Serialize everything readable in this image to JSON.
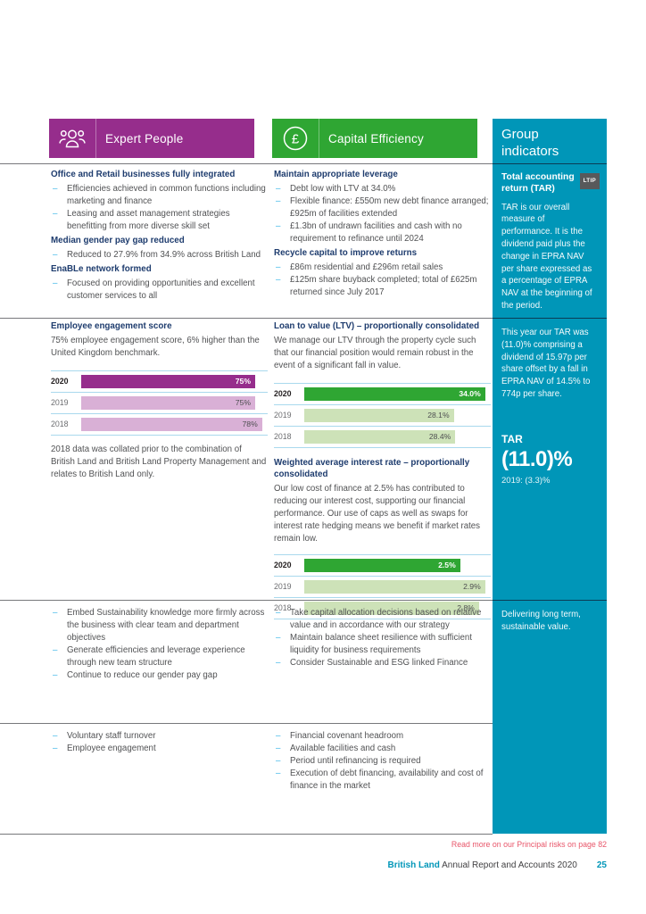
{
  "colors": {
    "purple": "#962d8c",
    "purple_light": "#d9b0d6",
    "green": "#2fa633",
    "green_light": "#cde2b8",
    "teal_sidebar": "#0096b8",
    "navy_heading": "#1e3c6e",
    "body_gray": "#515254",
    "dash_cyan": "#3db7e8",
    "row_line_blue": "#a9d9ed",
    "readmore_pink": "#e8566a"
  },
  "headers": {
    "expert_people": "Expert People",
    "capital_efficiency": "Capital Efficiency"
  },
  "sidebar": {
    "title": "Group indicators",
    "kpi_heading": "Total accounting return (TAR)",
    "kpi_badge": "LTIP",
    "kpi_desc": "TAR is our overall measure of performance. It is the dividend paid plus the change in EPRA NAV per share expressed as a percentage of EPRA NAV at the beginning of the period.",
    "year_summary": "This year our TAR was (11.0)% comprising a dividend of 15.97p per share offset by a fall in EPRA NAV of 14.5% to 774p per share.",
    "kpi_label": "TAR",
    "kpi_value": "(11.0)%",
    "kpi_prior": "2019: (3.3)%",
    "tagline": "Delivering long term, sustainable value."
  },
  "col1": {
    "section1": {
      "h1": "Office and Retail businesses fully integrated",
      "b1": [
        "Efficiencies achieved in common functions including marketing and finance",
        "Leasing and asset management strategies benefitting from more diverse skill set"
      ],
      "h2": "Median gender pay gap reduced",
      "b2": [
        "Reduced to 27.9% from 34.9% across British Land"
      ],
      "h3": "EnaBLe network formed",
      "b3": [
        "Focused on providing opportunities and excellent customer services to all"
      ]
    },
    "section2": {
      "heading": "Employee engagement score",
      "body": "75% employee engagement score, 6% higher than the United Kingdom benchmark.",
      "note": "2018 data was collated prior to the combination of British Land and British Land Property Management and relates to British Land only."
    },
    "section3": {
      "bullets": [
        "Embed Sustainability knowledge more firmly across the business with clear team and department objectives",
        "Generate efficiencies and leverage experience through new team structure",
        "Continue to reduce our gender pay gap"
      ]
    },
    "section4": {
      "bullets": [
        "Voluntary staff turnover",
        "Employee engagement"
      ]
    }
  },
  "col2": {
    "section1": {
      "h1": "Maintain appropriate leverage",
      "b1": [
        "Debt low with LTV at 34.0%",
        "Flexible finance: £550m new debt finance arranged; £925m of facilities extended",
        "£1.3bn of undrawn facilities and cash with no requirement to refinance until 2024"
      ],
      "h2": "Recycle capital to improve returns",
      "b2": [
        "£86m residential and £296m retail sales",
        "£125m share buyback completed; total of £625m returned since July 2017"
      ]
    },
    "section2": {
      "heading1": "Loan to value (LTV) – proportionally consolidated",
      "body1": "We manage our LTV through the property cycle such that our financial position would remain robust in the event of a significant fall in value.",
      "heading2": "Weighted average interest rate – proportionally consolidated",
      "body2": "Our low cost of finance at 2.5% has contributed to reducing our interest cost, supporting our financial performance. Our use of caps as well as swaps for interest rate hedging means we benefit if market rates remain low."
    },
    "section3": {
      "bullets": [
        "Take capital allocation decisions based on relative value and in accordance with our strategy",
        "Maintain balance sheet resilience with sufficient liquidity for business requirements",
        "Consider Sustainable and ESG linked Finance"
      ]
    },
    "section4": {
      "bullets": [
        "Financial covenant headroom",
        "Available facilities and cash",
        "Period until refinancing is required",
        "Execution of debt financing, availability and cost of finance in the market"
      ]
    }
  },
  "chart_data": [
    {
      "type": "bar",
      "title": "Employee engagement score",
      "orientation": "horizontal",
      "categories": [
        "2020",
        "2019",
        "2018"
      ],
      "values": [
        75,
        75,
        78
      ],
      "labels": [
        "75%",
        "75%",
        "78%"
      ],
      "unit": "%",
      "max": 78,
      "emphasis_color": "#962d8c",
      "bar_color": "#d9b0d6"
    },
    {
      "type": "bar",
      "title": "Loan to value (LTV) – proportionally consolidated",
      "orientation": "horizontal",
      "categories": [
        "2020",
        "2019",
        "2018"
      ],
      "values": [
        34.0,
        28.1,
        28.4
      ],
      "labels": [
        "34.0%",
        "28.1%",
        "28.4%"
      ],
      "unit": "%",
      "max": 34.0,
      "emphasis_color": "#2fa633",
      "bar_color": "#cde2b8"
    },
    {
      "type": "bar",
      "title": "Weighted average interest rate – proportionally consolidated",
      "orientation": "horizontal",
      "categories": [
        "2020",
        "2019",
        "2018"
      ],
      "values": [
        2.5,
        2.9,
        2.8
      ],
      "labels": [
        "2.5%",
        "2.9%",
        "2.8%"
      ],
      "unit": "%",
      "max": 2.9,
      "emphasis_color": "#2fa633",
      "bar_color": "#cde2b8"
    }
  ],
  "footer": {
    "read_more": "Read more on our Principal risks on page 82",
    "brand": "British Land",
    "report": " Annual Report and Accounts 2020",
    "page_number": "25"
  }
}
